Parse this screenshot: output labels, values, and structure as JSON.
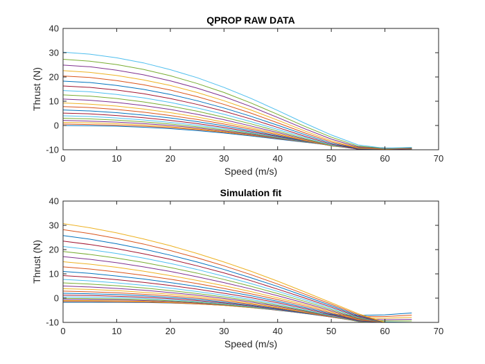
{
  "figure": {
    "background": "#ffffff",
    "series_colors": [
      "#0072BD",
      "#D95319",
      "#EDB120",
      "#7E2F8E",
      "#77AC30",
      "#4DBEEE",
      "#A2142F"
    ]
  },
  "chart_data": [
    {
      "type": "line",
      "title": "QPROP RAW DATA",
      "xlabel": "Speed (m/s)",
      "ylabel": "Thrust (N)",
      "xlim": [
        0,
        70
      ],
      "ylim": [
        -10,
        40
      ],
      "xticks": [
        0,
        10,
        20,
        30,
        40,
        50,
        60,
        70
      ],
      "yticks": [
        -10,
        0,
        10,
        20,
        30,
        40
      ],
      "x_tick_labels": [
        "0",
        "10",
        "20",
        "30",
        "40",
        "50",
        "60",
        "70"
      ],
      "y_tick_labels": [
        "-10",
        "0",
        "10",
        "20",
        "30",
        "40"
      ],
      "grid": false,
      "legend": "none",
      "x": [
        0,
        5,
        10,
        15,
        20,
        25,
        30,
        35,
        40,
        45,
        50,
        55,
        60,
        65
      ],
      "series": [
        {
          "values": [
            0.0,
            -0.1,
            -0.3,
            -0.7,
            -1.3,
            -2.1,
            -3.1,
            -4.3,
            -5.6,
            -6.9,
            -8.0,
            -8.8,
            -9.2,
            -9.3
          ]
        },
        {
          "values": [
            0.6,
            0.4,
            0.1,
            -0.3,
            -0.9,
            -1.7,
            -2.8,
            -4.0,
            -5.4,
            -6.8,
            -8.0,
            -8.9,
            -9.3,
            -9.4
          ]
        },
        {
          "values": [
            1.3,
            1.1,
            0.7,
            0.2,
            -0.5,
            -1.4,
            -2.5,
            -3.8,
            -5.3,
            -6.8,
            -8.1,
            -9.0,
            -9.3,
            -9.4
          ]
        },
        {
          "values": [
            2.1,
            1.8,
            1.4,
            0.8,
            0.0,
            -1.0,
            -2.2,
            -3.6,
            -5.2,
            -6.8,
            -8.2,
            -9.1,
            -9.4,
            -9.4
          ]
        },
        {
          "values": [
            3.0,
            2.7,
            2.2,
            1.5,
            0.6,
            -0.5,
            -1.8,
            -3.3,
            -5.0,
            -6.7,
            -8.2,
            -9.2,
            -9.5,
            -9.5
          ]
        },
        {
          "values": [
            4.0,
            3.7,
            3.1,
            2.3,
            1.3,
            0.1,
            -1.3,
            -3.0,
            -4.8,
            -6.6,
            -8.3,
            -9.3,
            -9.6,
            -9.5
          ]
        },
        {
          "values": [
            5.1,
            4.8,
            4.1,
            3.2,
            2.1,
            0.8,
            -0.8,
            -2.6,
            -4.5,
            -6.5,
            -8.3,
            -9.4,
            -9.7,
            -9.6
          ]
        },
        {
          "values": [
            6.4,
            6.0,
            5.3,
            4.3,
            3.1,
            1.6,
            -0.1,
            -2.1,
            -4.2,
            -6.4,
            -8.4,
            -9.5,
            -9.7,
            -9.6
          ]
        },
        {
          "values": [
            7.8,
            7.4,
            6.6,
            5.5,
            4.1,
            2.5,
            0.6,
            -1.5,
            -3.8,
            -6.2,
            -8.4,
            -9.6,
            -9.8,
            -9.7
          ]
        },
        {
          "values": [
            9.3,
            8.8,
            8.0,
            6.8,
            5.3,
            3.5,
            1.4,
            -0.9,
            -3.4,
            -6.0,
            -8.4,
            -9.7,
            -9.8,
            -9.7
          ]
        },
        {
          "values": [
            10.9,
            10.4,
            9.5,
            8.2,
            6.6,
            4.6,
            2.4,
            -0.2,
            -2.9,
            -5.7,
            -8.3,
            -9.7,
            -9.9,
            -9.7
          ]
        },
        {
          "values": [
            12.6,
            12.1,
            11.1,
            9.7,
            8.0,
            5.9,
            3.4,
            0.7,
            -2.3,
            -5.4,
            -8.2,
            -9.7,
            -9.9,
            -9.7
          ]
        },
        {
          "values": [
            14.4,
            13.9,
            12.8,
            11.4,
            9.5,
            7.2,
            4.6,
            1.6,
            -1.6,
            -4.9,
            -8.0,
            -9.8,
            -9.9,
            -9.6
          ]
        },
        {
          "values": [
            16.3,
            15.7,
            14.6,
            13.1,
            11.1,
            8.7,
            5.9,
            2.7,
            -0.8,
            -4.4,
            -7.7,
            -9.8,
            -9.9,
            -9.6
          ]
        },
        {
          "values": [
            18.3,
            17.7,
            16.5,
            14.9,
            12.8,
            10.2,
            7.2,
            3.8,
            0.1,
            -3.7,
            -7.3,
            -9.6,
            -9.8,
            -9.5
          ]
        },
        {
          "values": [
            20.4,
            19.8,
            18.5,
            16.8,
            14.6,
            11.9,
            8.7,
            5.1,
            1.1,
            -3.0,
            -6.8,
            -9.4,
            -9.8,
            -9.4
          ]
        },
        {
          "values": [
            22.6,
            21.9,
            20.6,
            18.8,
            16.5,
            13.6,
            10.2,
            6.4,
            2.2,
            -2.2,
            -6.3,
            -9.2,
            -9.7,
            -9.3
          ]
        },
        {
          "values": [
            24.9,
            24.2,
            22.8,
            20.9,
            18.4,
            15.4,
            11.9,
            7.8,
            3.3,
            -1.3,
            -5.6,
            -8.9,
            -9.6,
            -9.2
          ]
        },
        {
          "values": [
            27.3,
            26.5,
            25.1,
            23.1,
            20.5,
            17.3,
            13.6,
            9.3,
            4.6,
            -0.3,
            -4.8,
            -8.5,
            -9.5,
            -9.1
          ]
        },
        {
          "values": [
            30.2,
            29.4,
            27.9,
            25.8,
            23.0,
            19.7,
            15.7,
            11.2,
            6.2,
            1.0,
            -3.9,
            -8.0,
            -9.4,
            -9.0
          ]
        }
      ]
    },
    {
      "type": "line",
      "title": "Simulation fit",
      "xlabel": "Speed (m/s)",
      "ylabel": "Thrust (N)",
      "xlim": [
        0,
        70
      ],
      "ylim": [
        -10,
        40
      ],
      "xticks": [
        0,
        10,
        20,
        30,
        40,
        50,
        60,
        70
      ],
      "yticks": [
        -10,
        0,
        10,
        20,
        30,
        40
      ],
      "x_tick_labels": [
        "0",
        "10",
        "20",
        "30",
        "40",
        "50",
        "60",
        "70"
      ],
      "y_tick_labels": [
        "-10",
        "0",
        "10",
        "20",
        "30",
        "40"
      ],
      "grid": false,
      "legend": "none",
      "x": [
        0,
        5,
        10,
        15,
        20,
        25,
        30,
        35,
        40,
        45,
        50,
        55,
        60,
        65
      ],
      "series": [
        {
          "values": [
            -1.7,
            -1.7,
            -1.7,
            -1.8,
            -2.0,
            -2.4,
            -3.0,
            -3.8,
            -4.8,
            -5.8,
            -6.7,
            -7.1,
            -6.9,
            -6.1
          ]
        },
        {
          "values": [
            -1.4,
            -1.4,
            -1.5,
            -1.6,
            -1.9,
            -2.4,
            -3.0,
            -3.9,
            -4.9,
            -6.0,
            -7.0,
            -7.6,
            -7.6,
            -7.0
          ]
        },
        {
          "values": [
            -1.0,
            -1.0,
            -1.1,
            -1.3,
            -1.7,
            -2.2,
            -3.0,
            -3.9,
            -5.0,
            -6.2,
            -7.3,
            -8.1,
            -8.3,
            -7.9
          ]
        },
        {
          "values": [
            -0.6,
            -0.6,
            -0.7,
            -1.0,
            -1.4,
            -2.0,
            -2.8,
            -3.8,
            -5.0,
            -6.3,
            -7.5,
            -8.5,
            -8.9,
            -8.7
          ]
        },
        {
          "values": [
            -0.1,
            -0.2,
            -0.3,
            -0.6,
            -1.1,
            -1.7,
            -2.6,
            -3.7,
            -4.9,
            -6.3,
            -7.7,
            -8.8,
            -9.4,
            -9.4
          ]
        },
        {
          "values": [
            0.5,
            0.4,
            0.2,
            -0.1,
            -0.7,
            -1.4,
            -2.3,
            -3.5,
            -4.8,
            -6.3,
            -7.8,
            -9.1,
            -9.8,
            -10.0
          ]
        },
        {
          "values": [
            1.2,
            1.1,
            0.8,
            0.4,
            -0.2,
            -1.0,
            -2.0,
            -3.2,
            -4.6,
            -6.2,
            -7.8,
            -9.3,
            -10.0,
            -10.0
          ]
        },
        {
          "values": [
            2.0,
            1.8,
            1.5,
            1.0,
            0.3,
            -0.5,
            -1.6,
            -2.9,
            -4.4,
            -6.1,
            -7.8,
            -9.4,
            -10.0,
            -10.0
          ]
        },
        {
          "values": [
            2.9,
            2.6,
            2.2,
            1.6,
            0.9,
            0.0,
            -1.1,
            -2.5,
            -4.1,
            -5.9,
            -7.8,
            -9.5,
            -10.0,
            -10.0
          ]
        },
        {
          "values": [
            3.9,
            3.6,
            3.1,
            2.4,
            1.6,
            0.6,
            -0.6,
            -2.1,
            -3.8,
            -5.7,
            -7.7,
            -9.6,
            -10.0,
            -10.0
          ]
        },
        {
          "values": [
            5.0,
            4.6,
            4.0,
            3.3,
            2.3,
            1.2,
            -0.1,
            -1.6,
            -3.4,
            -5.4,
            -7.6,
            -9.6,
            -10.0,
            -10.0
          ]
        },
        {
          "values": [
            6.3,
            5.8,
            5.1,
            4.2,
            3.1,
            1.9,
            0.5,
            -1.1,
            -3.0,
            -5.1,
            -7.4,
            -9.6,
            -10.0,
            -10.0
          ]
        },
        {
          "values": [
            7.7,
            7.1,
            6.3,
            5.3,
            4.1,
            2.7,
            1.2,
            -0.5,
            -2.5,
            -4.8,
            -7.2,
            -9.5,
            -10.0,
            -10.0
          ]
        },
        {
          "values": [
            9.3,
            8.6,
            7.6,
            6.5,
            5.2,
            3.7,
            2.0,
            0.2,
            -1.9,
            -4.3,
            -6.9,
            -9.4,
            -10.0,
            -10.0
          ]
        },
        {
          "values": [
            11.0,
            10.2,
            9.1,
            7.9,
            6.4,
            4.8,
            3.0,
            1.0,
            -1.3,
            -3.8,
            -6.5,
            -9.2,
            -10.0,
            -10.0
          ]
        },
        {
          "values": [
            12.9,
            12.0,
            10.8,
            9.4,
            7.8,
            6.0,
            4.0,
            1.8,
            -0.6,
            -3.2,
            -6.1,
            -9.0,
            -10.0,
            -10.0
          ]
        },
        {
          "values": [
            15.0,
            14.0,
            12.7,
            11.1,
            9.3,
            7.3,
            5.1,
            2.7,
            0.1,
            -2.6,
            -5.6,
            -8.7,
            -10.0,
            -10.0
          ]
        },
        {
          "values": [
            17.1,
            16.0,
            14.6,
            12.9,
            11.0,
            8.8,
            6.4,
            3.8,
            1.0,
            -2.0,
            -5.2,
            -8.5,
            -10.0,
            -10.0
          ]
        },
        {
          "values": [
            19.2,
            18.0,
            16.5,
            14.7,
            12.6,
            10.3,
            7.7,
            4.9,
            1.9,
            -1.3,
            -4.7,
            -8.2,
            -10.0,
            -10.0
          ]
        },
        {
          "values": [
            21.3,
            20.0,
            18.4,
            16.5,
            14.3,
            11.8,
            9.0,
            6.0,
            2.8,
            -0.6,
            -4.2,
            -7.9,
            -10.0,
            -10.0
          ]
        },
        {
          "values": [
            23.5,
            22.1,
            20.4,
            18.3,
            16.0,
            13.3,
            10.4,
            7.2,
            3.7,
            0.1,
            -3.7,
            -7.6,
            -10.0,
            -10.0
          ]
        },
        {
          "values": [
            25.8,
            24.3,
            22.4,
            20.2,
            17.7,
            14.9,
            11.8,
            8.4,
            4.8,
            0.9,
            -3.1,
            -7.2,
            -10.0,
            -10.0
          ]
        },
        {
          "values": [
            28.2,
            26.6,
            24.6,
            22.3,
            19.6,
            16.6,
            13.3,
            9.7,
            5.8,
            1.7,
            -2.5,
            -6.8,
            -10.0,
            -10.0
          ]
        },
        {
          "values": [
            30.7,
            29.0,
            26.9,
            24.4,
            21.6,
            18.4,
            14.9,
            11.1,
            7.0,
            2.6,
            -1.9,
            -6.4,
            -10.0,
            -10.0
          ]
        }
      ]
    }
  ]
}
